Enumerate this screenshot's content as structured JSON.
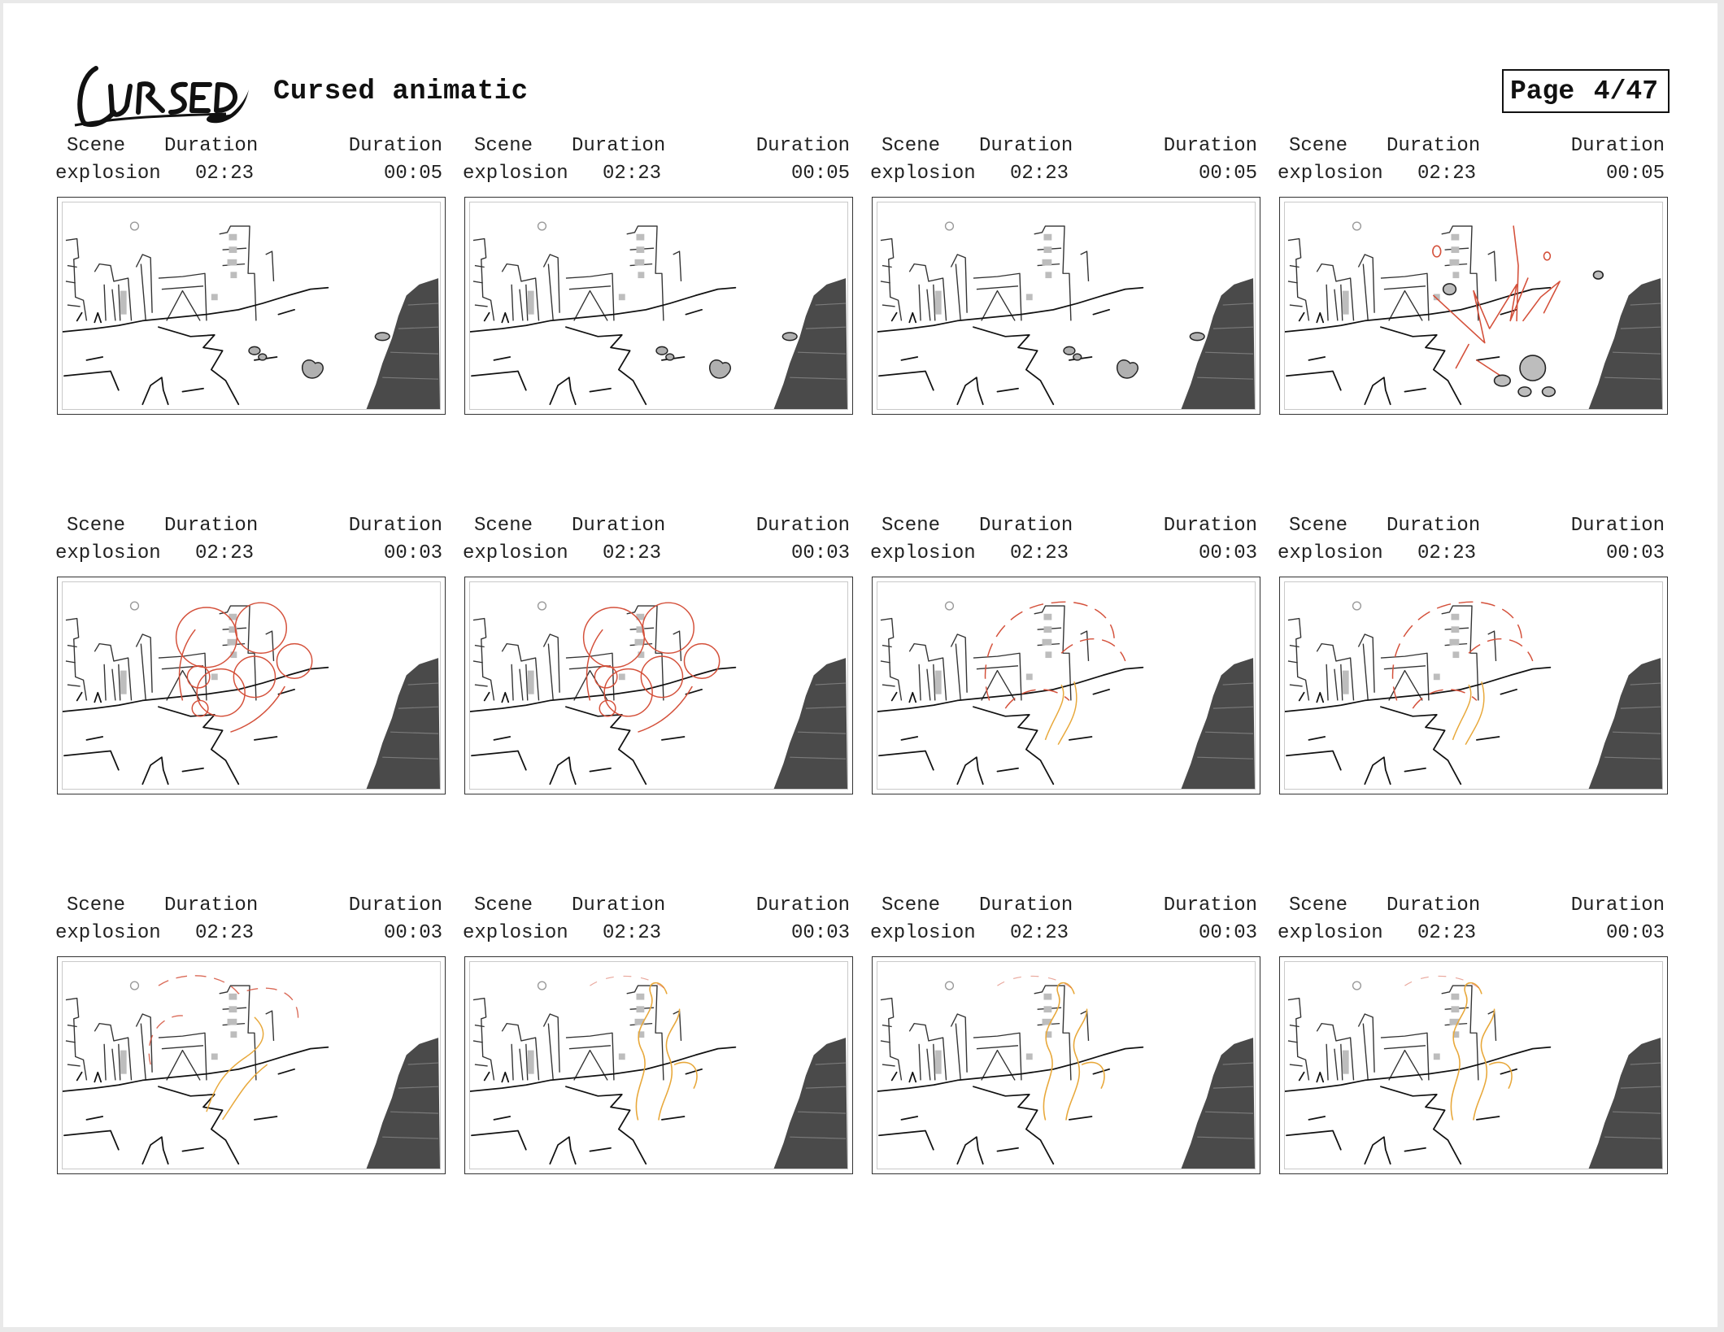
{
  "header": {
    "logo_text": "CURSED",
    "title": "Cursed animatic",
    "page_label": "Page",
    "page_number": "4/47"
  },
  "labels": {
    "scene": "Scene",
    "duration": "Duration"
  },
  "panels": [
    {
      "scene": "explosion",
      "scene_duration": "02:23",
      "shot_duration": "00:05",
      "overlay": "debris"
    },
    {
      "scene": "explosion",
      "scene_duration": "02:23",
      "shot_duration": "00:05",
      "overlay": "debris"
    },
    {
      "scene": "explosion",
      "scene_duration": "02:23",
      "shot_duration": "00:05",
      "overlay": "debris"
    },
    {
      "scene": "explosion",
      "scene_duration": "02:23",
      "shot_duration": "00:05",
      "overlay": "blast"
    },
    {
      "scene": "explosion",
      "scene_duration": "02:23",
      "shot_duration": "00:03",
      "overlay": "cloud-solid"
    },
    {
      "scene": "explosion",
      "scene_duration": "02:23",
      "shot_duration": "00:03",
      "overlay": "cloud-solid"
    },
    {
      "scene": "explosion",
      "scene_duration": "02:23",
      "shot_duration": "00:03",
      "overlay": "cloud-fading"
    },
    {
      "scene": "explosion",
      "scene_duration": "02:23",
      "shot_duration": "00:03",
      "overlay": "cloud-fading"
    },
    {
      "scene": "explosion",
      "scene_duration": "02:23",
      "shot_duration": "00:03",
      "overlay": "smoke-red"
    },
    {
      "scene": "explosion",
      "scene_duration": "02:23",
      "shot_duration": "00:03",
      "overlay": "smoke-orange"
    },
    {
      "scene": "explosion",
      "scene_duration": "02:23",
      "shot_duration": "00:03",
      "overlay": "smoke-orange"
    },
    {
      "scene": "explosion",
      "scene_duration": "02:23",
      "shot_duration": "00:03",
      "overlay": "smoke-orange"
    }
  ],
  "colors": {
    "sketch_red": "#d4503a",
    "sketch_orange": "#e8a83a",
    "cliff": "#4a4a4a"
  }
}
